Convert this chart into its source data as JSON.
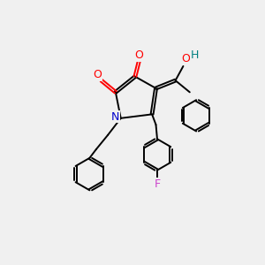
{
  "background_color": "#f0f0f0",
  "atom_colors": {
    "O": "#ff0000",
    "N": "#0000cc",
    "F": "#cc44cc",
    "C": "#000000",
    "OH_color": "#008080"
  },
  "bond_lw": 1.4,
  "figsize": [
    3.0,
    3.0
  ],
  "dpi": 100,
  "xlim": [
    0,
    10
  ],
  "ylim": [
    0,
    10
  ]
}
